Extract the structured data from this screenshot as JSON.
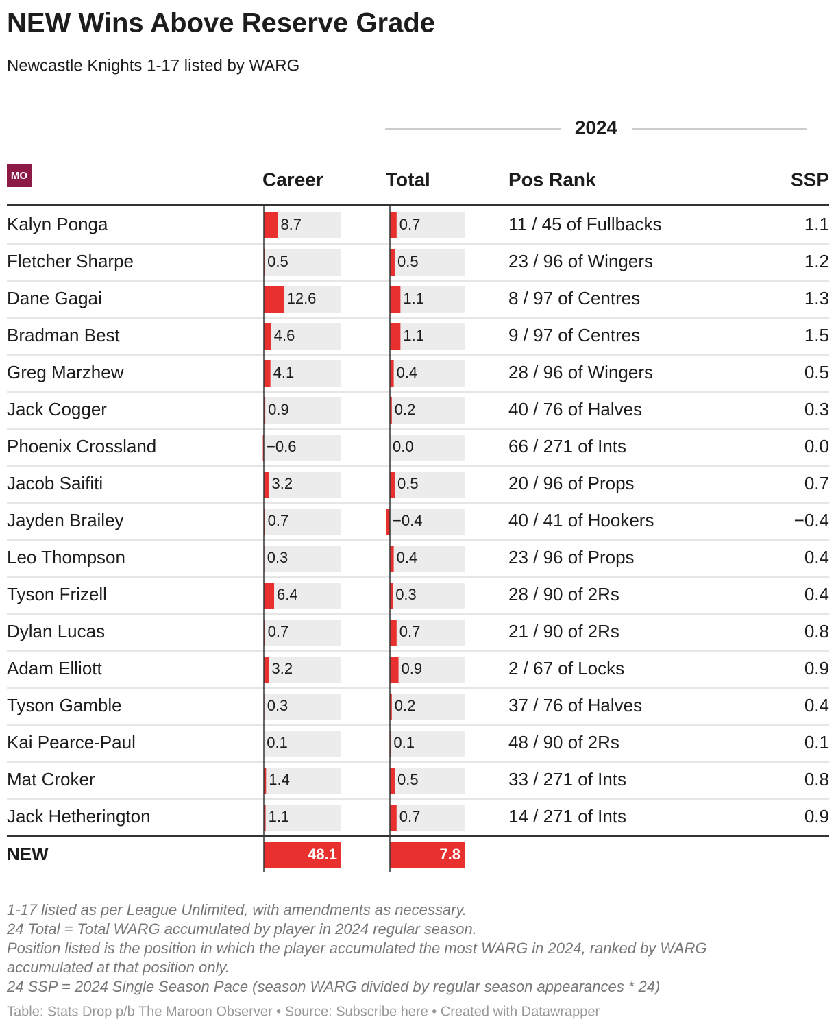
{
  "header": {
    "title": "NEW Wins Above Reserve Grade",
    "subtitle": "Newcastle Knights 1-17 listed by WARG",
    "logo": "MO"
  },
  "table": {
    "group_header": "2024",
    "columns": [
      "Career",
      "Total",
      "Pos Rank",
      "SSP"
    ],
    "rows": [
      {
        "player": "Kalyn Ponga",
        "career": 8.7,
        "career_label": "8.7",
        "total": 0.7,
        "total_label": "0.7",
        "pos_rank": "11 / 45 of Fullbacks",
        "ssp": "1.1"
      },
      {
        "player": "Fletcher Sharpe",
        "career": 0.5,
        "career_label": "0.5",
        "total": 0.5,
        "total_label": "0.5",
        "pos_rank": "23 / 96 of Wingers",
        "ssp": "1.2"
      },
      {
        "player": "Dane Gagai",
        "career": 12.6,
        "career_label": "12.6",
        "total": 1.1,
        "total_label": "1.1",
        "pos_rank": "8 / 97 of Centres",
        "ssp": "1.3"
      },
      {
        "player": "Bradman Best",
        "career": 4.6,
        "career_label": "4.6",
        "total": 1.1,
        "total_label": "1.1",
        "pos_rank": "9 / 97 of Centres",
        "ssp": "1.5"
      },
      {
        "player": "Greg Marzhew",
        "career": 4.1,
        "career_label": "4.1",
        "total": 0.4,
        "total_label": "0.4",
        "pos_rank": "28 / 96 of Wingers",
        "ssp": "0.5"
      },
      {
        "player": "Jack Cogger",
        "career": 0.9,
        "career_label": "0.9",
        "total": 0.2,
        "total_label": "0.2",
        "pos_rank": "40 / 76 of Halves",
        "ssp": "0.3"
      },
      {
        "player": "Phoenix Crossland",
        "career": -0.6,
        "career_label": "−0.6",
        "total": 0.0,
        "total_label": "0.0",
        "pos_rank": "66 / 271 of Ints",
        "ssp": "0.0"
      },
      {
        "player": "Jacob Saifiti",
        "career": 3.2,
        "career_label": "3.2",
        "total": 0.5,
        "total_label": "0.5",
        "pos_rank": "20 / 96 of Props",
        "ssp": "0.7"
      },
      {
        "player": "Jayden Brailey",
        "career": 0.7,
        "career_label": "0.7",
        "total": -0.4,
        "total_label": "−0.4",
        "pos_rank": "40 / 41 of Hookers",
        "ssp": "−0.4"
      },
      {
        "player": "Leo Thompson",
        "career": 0.3,
        "career_label": "0.3",
        "total": 0.4,
        "total_label": "0.4",
        "pos_rank": "23 / 96 of Props",
        "ssp": "0.4"
      },
      {
        "player": "Tyson Frizell",
        "career": 6.4,
        "career_label": "6.4",
        "total": 0.3,
        "total_label": "0.3",
        "pos_rank": "28 / 90 of 2Rs",
        "ssp": "0.4"
      },
      {
        "player": "Dylan Lucas",
        "career": 0.7,
        "career_label": "0.7",
        "total": 0.7,
        "total_label": "0.7",
        "pos_rank": "21 / 90 of 2Rs",
        "ssp": "0.8"
      },
      {
        "player": "Adam Elliott",
        "career": 3.2,
        "career_label": "3.2",
        "total": 0.9,
        "total_label": "0.9",
        "pos_rank": "2 / 67 of Locks",
        "ssp": "0.9"
      },
      {
        "player": "Tyson Gamble",
        "career": 0.3,
        "career_label": "0.3",
        "total": 0.2,
        "total_label": "0.2",
        "pos_rank": "37 / 76 of Halves",
        "ssp": "0.4"
      },
      {
        "player": "Kai Pearce-Paul",
        "career": 0.1,
        "career_label": "0.1",
        "total": 0.1,
        "total_label": "0.1",
        "pos_rank": "48 / 90 of 2Rs",
        "ssp": "0.1"
      },
      {
        "player": "Mat Croker",
        "career": 1.4,
        "career_label": "1.4",
        "total": 0.5,
        "total_label": "0.5",
        "pos_rank": "33 / 271 of Ints",
        "ssp": "0.8"
      },
      {
        "player": "Jack Hetherington",
        "career": 1.1,
        "career_label": "1.1",
        "total": 0.7,
        "total_label": "0.7",
        "pos_rank": "14 / 271 of Ints",
        "ssp": "0.9"
      }
    ],
    "total_row": {
      "team": "NEW",
      "career": 48.1,
      "career_label": "48.1",
      "total": 7.8,
      "total_label": "7.8"
    }
  },
  "footer": {
    "notes": [
      "1-17 listed as per League Unlimited, with amendments as necessary.",
      "24 Total = Total WARG accumulated by player in 2024 regular season.",
      "Position listed is the position in which the player accumulated the most WARG in 2024, ranked by WARG",
      "accumulated at that position only.",
      "24 SSP = 2024 Single Season Pace (season WARG divided by regular season appearances * 24)"
    ],
    "credit": "Table: Stats Drop p/b The Maroon Observer • Source: Subscribe here • Created with Datawrapper"
  }
}
